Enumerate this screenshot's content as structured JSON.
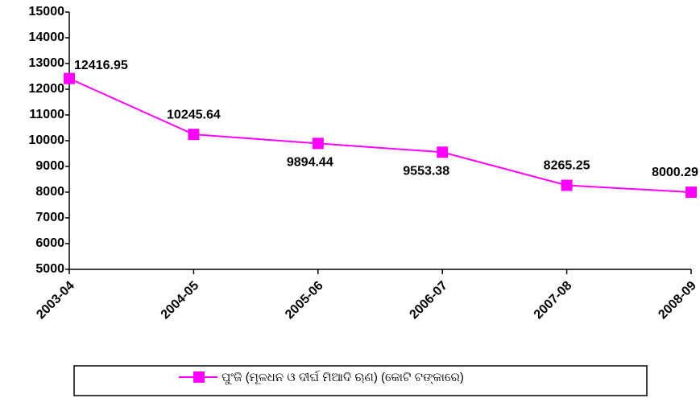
{
  "chart_data": {
    "type": "line",
    "categories": [
      "2003-04",
      "2004-05",
      "2005-06",
      "2006-07",
      "2007-08",
      "2008-09"
    ],
    "series": [
      {
        "name": "ପୁଂଜି (ମୂଳଧନ ଓ ଦୀର୍ଘ ମିଆଦି ଋଣ) (କୋଟି ଟଙ୍କାରେ)",
        "color": "#ff00ff",
        "values": [
          12416.95,
          10245.64,
          9894.44,
          9553.38,
          8265.25,
          8000.29
        ]
      }
    ],
    "ylim": [
      5000,
      15000
    ],
    "yticks": [
      5000,
      6000,
      7000,
      8000,
      9000,
      10000,
      11000,
      12000,
      13000,
      14000,
      15000
    ],
    "grid": false
  }
}
